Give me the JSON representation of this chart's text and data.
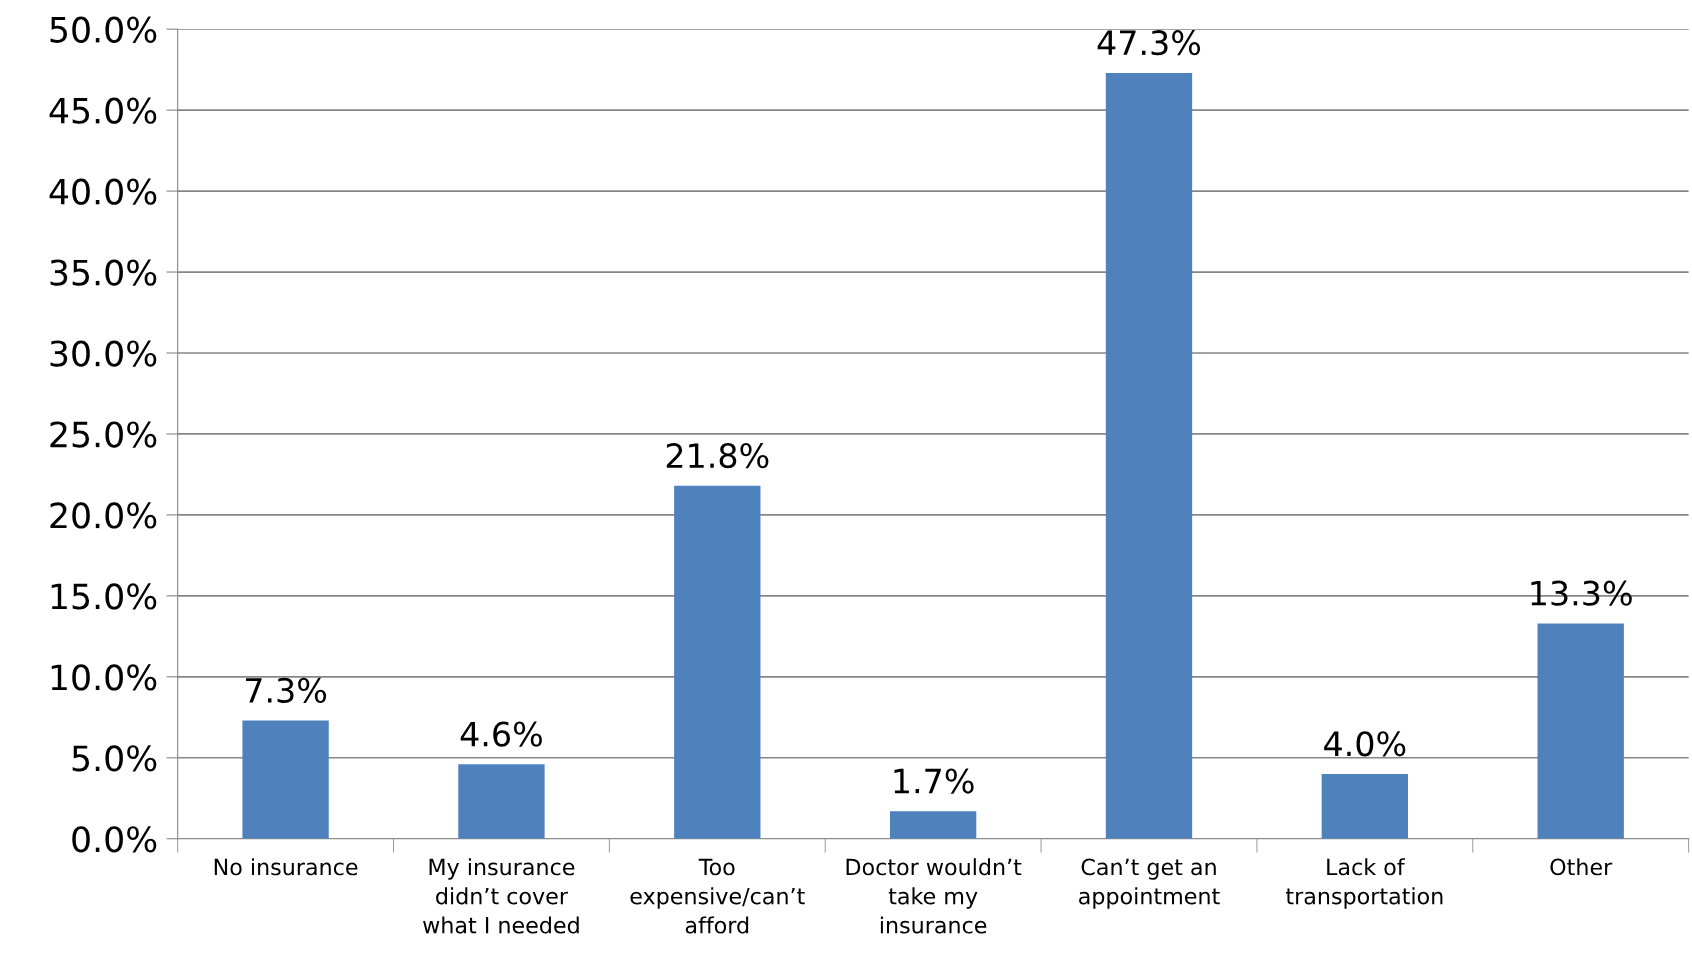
{
  "chart_data": {
    "type": "bar",
    "categories": [
      "No insurance",
      "My insurance\ndidn’t cover\nwhat I needed",
      "Too\nexpensive/can’t\nafford",
      "Doctor wouldn’t\ntake my\ninsurance",
      "Can’t get an\nappointment",
      "Lack of\ntransportation",
      "Other"
    ],
    "values": [
      7.3,
      4.6,
      21.8,
      1.7,
      47.3,
      4.0,
      13.3
    ],
    "value_labels": [
      "7.3%",
      "4.6%",
      "21.8%",
      "1.7%",
      "47.3%",
      "4.0%",
      "13.3%"
    ],
    "color": "#4f81bd",
    "ylim": [
      0,
      50
    ],
    "yticks": [
      {
        "value": 0,
        "label": "0.0%"
      },
      {
        "value": 5,
        "label": "5.0%"
      },
      {
        "value": 10,
        "label": "10.0%"
      },
      {
        "value": 15,
        "label": "15.0%"
      },
      {
        "value": 20,
        "label": "20.0%"
      },
      {
        "value": 25,
        "label": "25.0%"
      },
      {
        "value": 30,
        "label": "30.0%"
      },
      {
        "value": 35,
        "label": "35.0%"
      },
      {
        "value": 40,
        "label": "40.0%"
      },
      {
        "value": 45,
        "label": "45.0%"
      },
      {
        "value": 50,
        "label": "50.0%"
      }
    ],
    "grid": "y",
    "legend": false
  }
}
